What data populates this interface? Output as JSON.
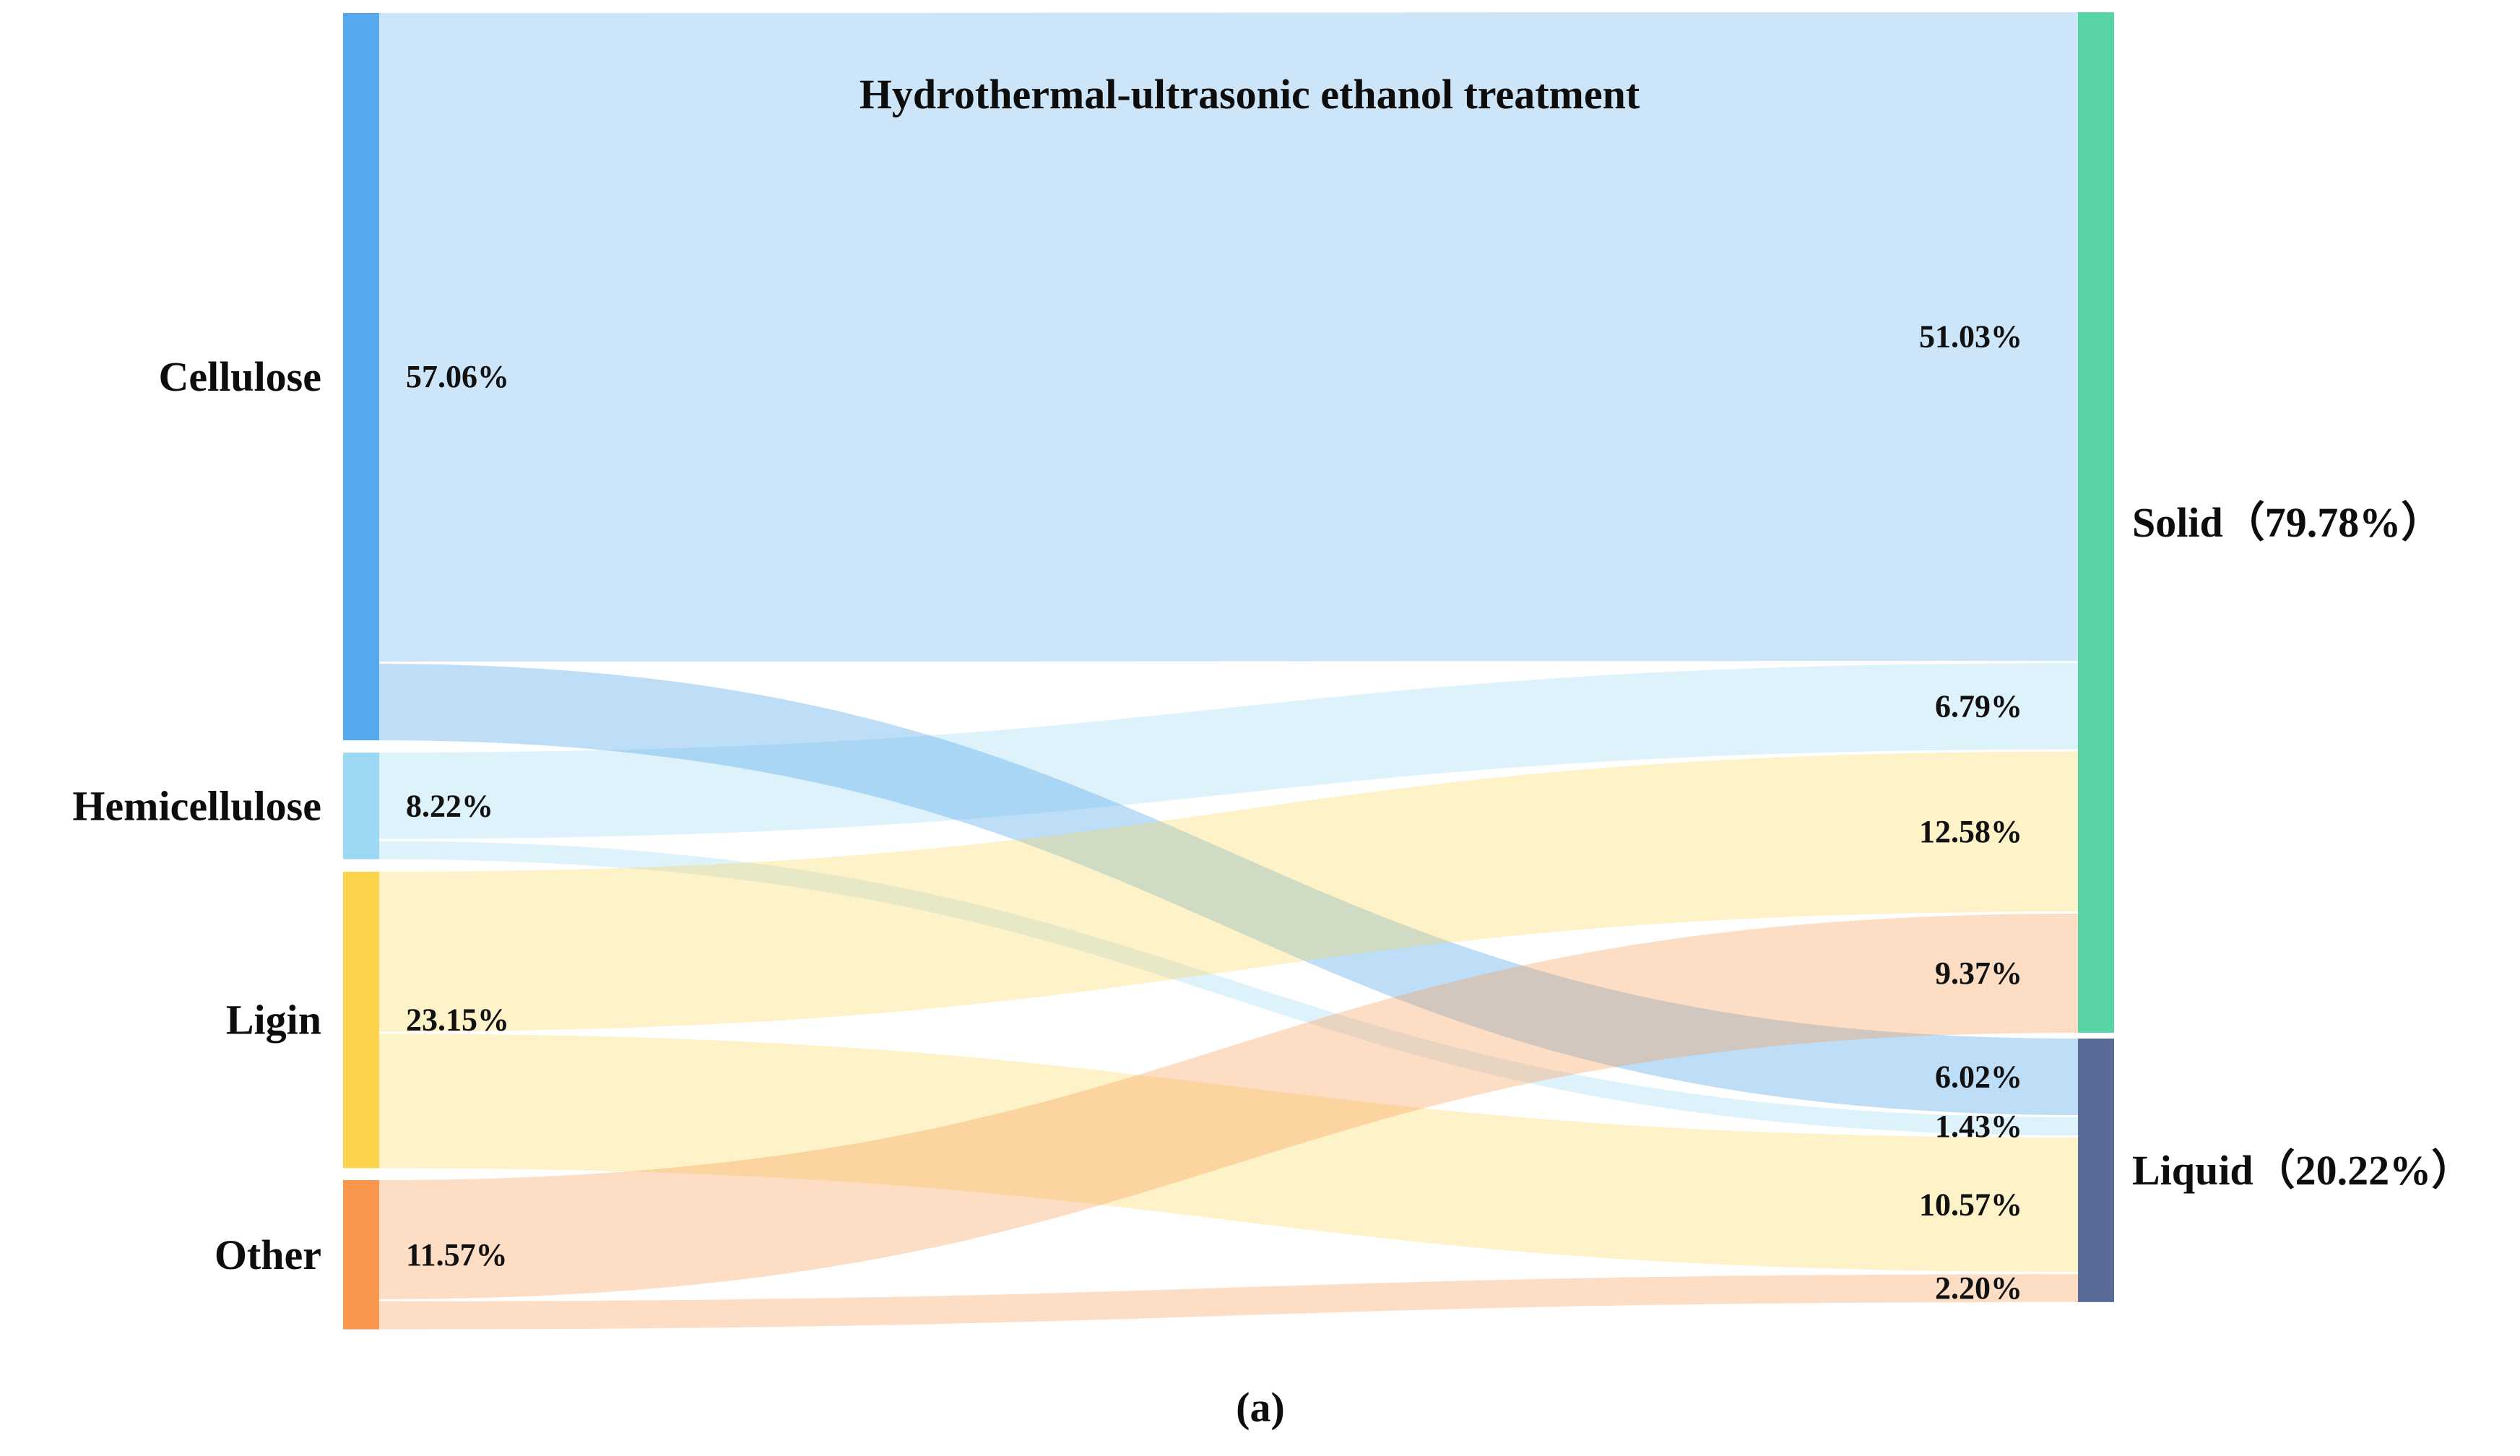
{
  "figure": {
    "caption": "(a)"
  },
  "chart_data": {
    "type": "sankey",
    "title": "Hydrothermal-ultrasonic ethanol treatment",
    "unit": "%",
    "left_nodes": [
      {
        "id": "Cellulose",
        "label": "Cellulose",
        "total": 57.06,
        "total_label": "57.06%",
        "color": "#55A9EC"
      },
      {
        "id": "Hemicellulose",
        "label": "Hemicellulose",
        "total": 8.22,
        "total_label": "8.22%",
        "color": "#9CD8F4"
      },
      {
        "id": "Ligin",
        "label": "Ligin",
        "total": 23.15,
        "total_label": "23.15%",
        "color": "#FBD44C"
      },
      {
        "id": "Other",
        "label": "Other",
        "total": 11.57,
        "total_label": "11.57%",
        "color": "#F9984C"
      }
    ],
    "right_nodes": [
      {
        "id": "Solid",
        "label": "Solid（79.78%）",
        "total": 79.78,
        "color": "#58D3A3"
      },
      {
        "id": "Liquid",
        "label": "Liquid（20.22%）",
        "total": 20.22,
        "color": "#5A6B98"
      }
    ],
    "links": [
      {
        "source": "Cellulose",
        "target": "Solid",
        "value": 51.03,
        "label": "51.03%",
        "opacity": 0.3
      },
      {
        "source": "Cellulose",
        "target": "Liquid",
        "value": 6.02,
        "label": "6.02%",
        "opacity": 0.38
      },
      {
        "source": "Hemicellulose",
        "target": "Solid",
        "value": 6.79,
        "label": "6.79%",
        "opacity": 0.33
      },
      {
        "source": "Hemicellulose",
        "target": "Liquid",
        "value": 1.43,
        "label": "1.43%",
        "opacity": 0.33
      },
      {
        "source": "Ligin",
        "target": "Solid",
        "value": 12.58,
        "label": "12.58%",
        "opacity": 0.3
      },
      {
        "source": "Ligin",
        "target": "Liquid",
        "value": 10.57,
        "label": "10.57%",
        "opacity": 0.3
      },
      {
        "source": "Other",
        "target": "Solid",
        "value": 9.37,
        "label": "9.37%",
        "opacity": 0.33
      },
      {
        "source": "Other",
        "target": "Liquid",
        "value": 2.2,
        "label": "2.20%",
        "opacity": 0.33
      }
    ],
    "draw_order": [
      "Cellulose-Solid",
      "Hemicellulose-Solid",
      "Hemicellulose-Liquid",
      "Cellulose-Liquid",
      "Ligin-Solid",
      "Ligin-Liquid",
      "Other-Solid",
      "Other-Liquid"
    ],
    "legend_position": "none",
    "grid": false
  }
}
